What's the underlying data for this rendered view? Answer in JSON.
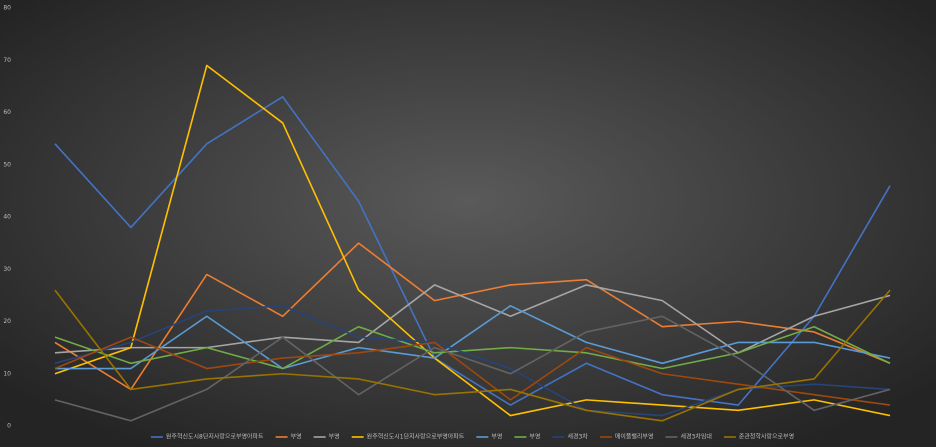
{
  "chart_data": {
    "type": "line",
    "categories": [
      null,
      null,
      null,
      null,
      null,
      null,
      null,
      null,
      null,
      null,
      null,
      null
    ],
    "series": [
      {
        "name": "원주혁신도시8단지사랑으로부영아파트",
        "color": "#4472c4",
        "values": [
          54,
          38,
          54,
          63,
          43,
          13,
          4,
          12,
          6,
          4,
          21,
          46
        ]
      },
      {
        "name": "부영",
        "color": "#ed7d31",
        "values": [
          16,
          7,
          29,
          21,
          35,
          24,
          27,
          28,
          19,
          20,
          18,
          12
        ]
      },
      {
        "name": "부영",
        "color": "#a5a5a5",
        "values": [
          14,
          15,
          15,
          17,
          16,
          27,
          21,
          27,
          24,
          14,
          21,
          25
        ]
      },
      {
        "name": "원주혁신도시1단지사랑으로부영아파트",
        "color": "#ffc000",
        "values": [
          10,
          15,
          69,
          58,
          26,
          13,
          2,
          5,
          4,
          3,
          5,
          2
        ]
      },
      {
        "name": "부영",
        "color": "#5b9bd5",
        "values": [
          11,
          11,
          21,
          11,
          15,
          13,
          23,
          16,
          12,
          16,
          16,
          13
        ]
      },
      {
        "name": "부영",
        "color": "#70ad47",
        "values": [
          17,
          12,
          15,
          11,
          19,
          14,
          15,
          14,
          11,
          14,
          19,
          12
        ]
      },
      {
        "name": "세경3차",
        "color": "#264478",
        "values": [
          12,
          16,
          22,
          23,
          17,
          16,
          11,
          3,
          2,
          7,
          8,
          7
        ]
      },
      {
        "name": "메이플밸리부영",
        "color": "#9e480e",
        "values": [
          11,
          17,
          11,
          13,
          14,
          16,
          5,
          15,
          10,
          8,
          6,
          4
        ]
      },
      {
        "name": "세경3차임대",
        "color": "#636363",
        "values": [
          5,
          1,
          7,
          17,
          6,
          15,
          10,
          18,
          21,
          13,
          3,
          7
        ]
      },
      {
        "name": "준관청학사랑으로부영",
        "color": "#997300",
        "values": [
          26,
          7,
          9,
          10,
          9,
          6,
          7,
          3,
          1,
          7,
          9,
          26
        ]
      }
    ],
    "ylim": [
      0,
      80
    ],
    "yticks": [
      0,
      10,
      20,
      30,
      40,
      50,
      60,
      70,
      80
    ],
    "grid": false,
    "legend": "bottom"
  }
}
